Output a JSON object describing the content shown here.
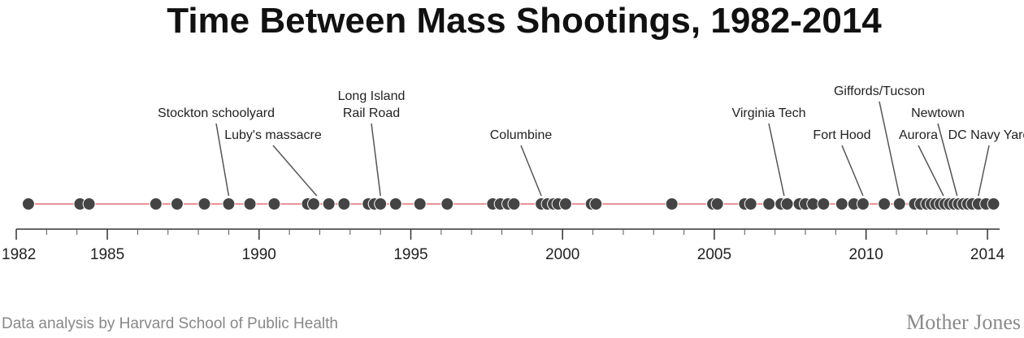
{
  "chart_data": {
    "type": "scatter",
    "title": "Time Between Mass Shootings, 1982-2014",
    "xlabel": "",
    "ylabel": "",
    "xlim": [
      1982,
      2014.4
    ],
    "x_tick_labels": [
      "1982",
      "1985",
      "1990",
      "1995",
      "2000",
      "2005",
      "2010",
      "2014"
    ],
    "x_tick_values": [
      1982,
      1985,
      1990,
      1995,
      2000,
      2005,
      2010,
      2014
    ],
    "minor_ticks": [
      1983,
      1984,
      1986,
      1987,
      1988,
      1989,
      1991,
      1992,
      1993,
      1994,
      1996,
      1997,
      1998,
      1999,
      2001,
      2002,
      2003,
      2004,
      2006,
      2007,
      2008,
      2009,
      2011,
      2012,
      2013
    ],
    "grid": false,
    "legend": "none",
    "colors": {
      "dot": "#444444",
      "line": "#e0707a",
      "text": "#222222"
    },
    "series": [
      {
        "x": [
          1982.4,
          1984.1,
          1984.4,
          1986.6,
          1987.3,
          1988.2,
          1989.0,
          1989.7,
          1990.5,
          1991.6,
          1991.8,
          1992.3,
          1992.8,
          1993.6,
          1993.8,
          1994.0,
          1994.5,
          1995.3,
          1996.2,
          1997.7,
          1997.95,
          1998.2,
          1998.4,
          1999.3,
          1999.5,
          1999.7,
          1999.85,
          2000.1,
          2000.95,
          2001.1,
          2003.6,
          2004.95,
          2005.1,
          2006.0,
          2006.2,
          2006.8,
          2007.2,
          2007.4,
          2007.8,
          2008.0,
          2008.25,
          2008.6,
          2009.2,
          2009.6,
          2009.9,
          2010.6,
          2011.1,
          2011.6,
          2011.8,
          2012.0,
          2012.15,
          2012.3,
          2012.45,
          2012.6,
          2012.75,
          2012.9,
          2013.05,
          2013.2,
          2013.35,
          2013.5,
          2013.7,
          2013.95,
          2014.2
        ]
      }
    ],
    "annotations": [
      {
        "lines": [
          "Stockton schoolyard"
        ],
        "x": 1989.0
      },
      {
        "lines": [
          "Luby's massacre"
        ],
        "x": 1991.9
      },
      {
        "lines": [
          "Long Island",
          "Rail Road"
        ],
        "x": 1994.0
      },
      {
        "lines": [
          "Columbine"
        ],
        "x": 1999.3
      },
      {
        "lines": [
          "Virginia Tech"
        ],
        "x": 2007.3
      },
      {
        "lines": [
          "Fort Hood"
        ],
        "x": 2009.9
      },
      {
        "lines": [
          "Giffords/Tucson"
        ],
        "x": 2011.1
      },
      {
        "lines": [
          "Aurora"
        ],
        "x": 2012.55
      },
      {
        "lines": [
          "Newtown"
        ],
        "x": 2013.0
      },
      {
        "lines": [
          "DC Navy Yard"
        ],
        "x": 2013.7
      }
    ]
  },
  "footer": {
    "credit": "Data analysis by Harvard School of Public Health",
    "brand": "Mother Jones"
  }
}
